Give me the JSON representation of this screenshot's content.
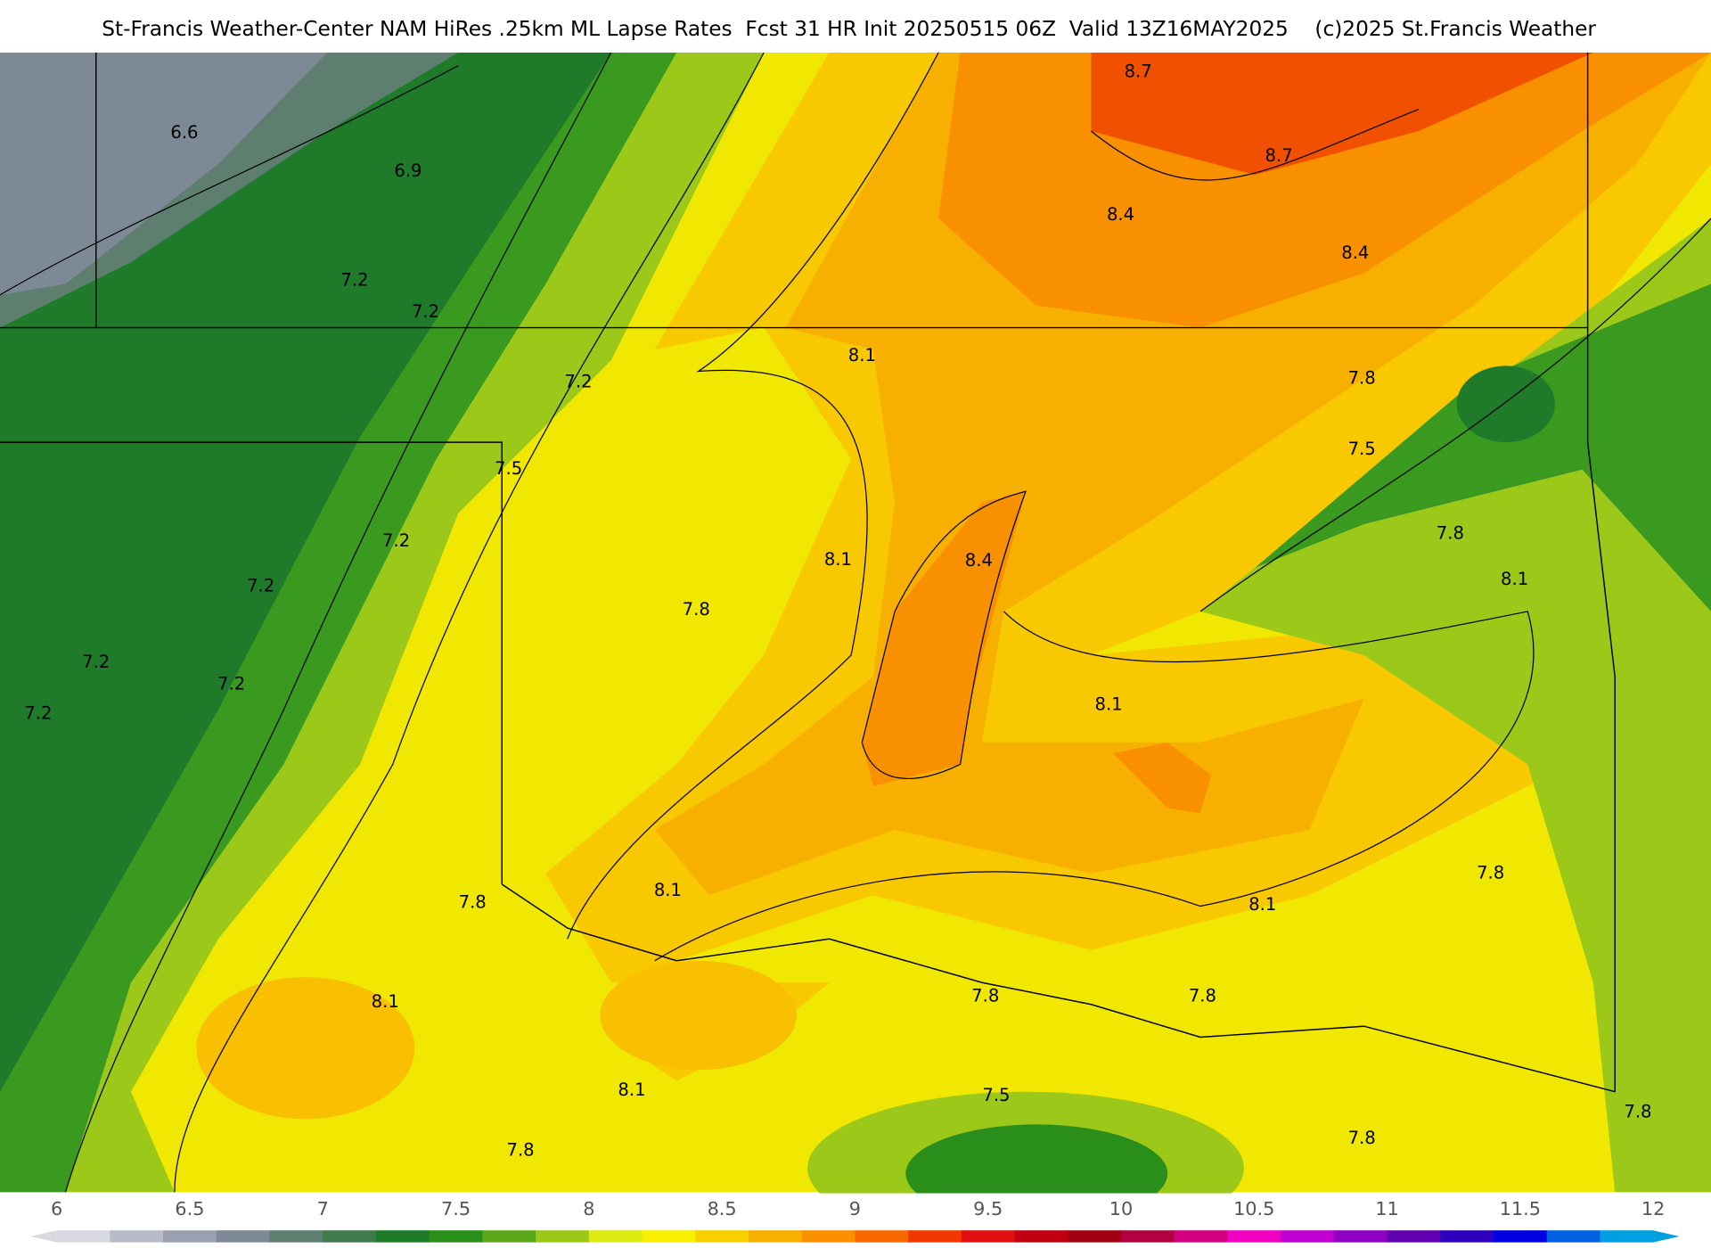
{
  "header": {
    "title": "St-Francis Weather-Center NAM HiRes .25km ML Lapse Rates  Fcst 31 HR Init 20250515 06Z  Valid 13Z16MAY2025    (c)2025 St.Francis Weather"
  },
  "contour_labels": [
    "8.7",
    "8.7",
    "8.4",
    "8.4",
    "6.6",
    "6.9",
    "7.2",
    "7.2",
    "7.2",
    "8.1",
    "7.8",
    "7.5",
    "7.5",
    "7.8",
    "7.2",
    "8.1",
    "8.4",
    "8.1",
    "7.2",
    "7.8",
    "7.2",
    "7.2",
    "8.1",
    "7.2",
    "7.8",
    "8.1",
    "8.1",
    "7.8",
    "8.1",
    "7.8",
    "7.8",
    "8.1",
    "7.5",
    "7.8",
    "7.8",
    "7.8"
  ],
  "colorbar": {
    "range": [
      6,
      12
    ],
    "ticks": [
      6,
      6.5,
      7,
      7.5,
      8,
      8.5,
      9,
      9.5,
      10,
      10.5,
      11,
      11.5,
      12
    ],
    "colors": [
      "#d8d8e0",
      "#b8bcc8",
      "#9aa0b0",
      "#7d8a96",
      "#5e7f70",
      "#3f7a4a",
      "#1f7a2a",
      "#2a8f1a",
      "#5aa81a",
      "#9cc81a",
      "#dcec10",
      "#f8f000",
      "#f8d000",
      "#f8b000",
      "#f89000",
      "#f86800",
      "#f03800",
      "#e01010",
      "#c00010",
      "#a00010",
      "#b00040",
      "#d00080",
      "#f000c0",
      "#c000d0",
      "#9000c0",
      "#6000b0",
      "#3000c0",
      "#0000e0",
      "#0060e0",
      "#00a0e0"
    ]
  }
}
